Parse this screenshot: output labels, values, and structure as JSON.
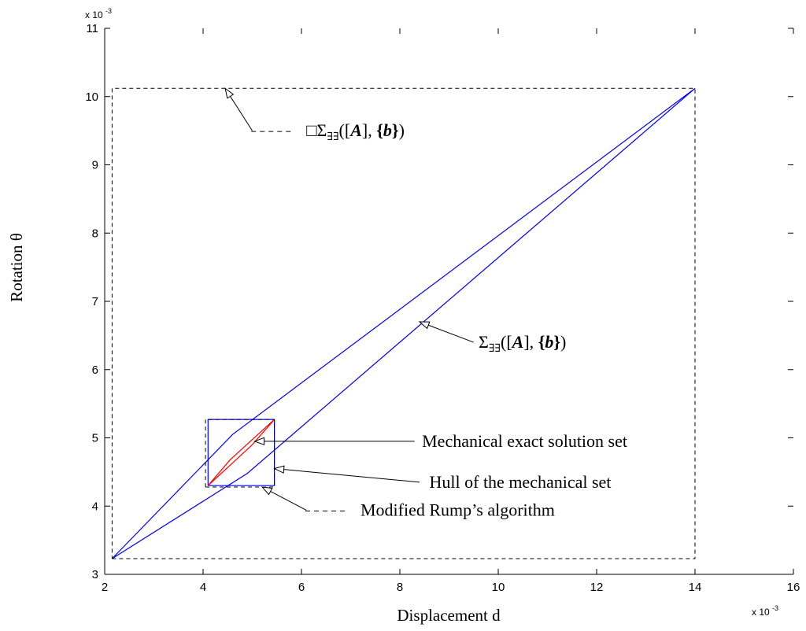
{
  "chart_data": {
    "type": "line",
    "title": "",
    "xlabel": "Displacement d",
    "ylabel": "Rotation θ",
    "xlim": [
      2,
      16
    ],
    "ylim": [
      3,
      11
    ],
    "x_scale_label": "x 10",
    "x_scale_exp": "-3",
    "y_scale_label": "x 10",
    "y_scale_exp": "-3",
    "xticks": [
      "2",
      "4",
      "6",
      "8",
      "10",
      "12",
      "14",
      "16"
    ],
    "yticks": [
      "3",
      "4",
      "5",
      "6",
      "7",
      "8",
      "9",
      "10",
      "11"
    ],
    "grid": false,
    "series": [
      {
        "color": "#0000ff",
        "style": "solid",
        "x": [
          2.15,
          4.6,
          14.0,
          4.9,
          2.15
        ],
        "y": [
          3.23,
          5.05,
          10.12,
          4.48,
          3.23
        ]
      },
      {
        "color": "#0000ff",
        "style": "solid",
        "x": [
          4.1,
          5.45,
          5.45,
          4.1,
          4.1
        ],
        "y": [
          4.3,
          4.3,
          5.27,
          5.27,
          4.3
        ]
      },
      {
        "color": "#ff0000",
        "style": "solid",
        "x": [
          4.1,
          4.55,
          5.45,
          5.0,
          4.1
        ],
        "y": [
          4.3,
          4.68,
          5.27,
          4.9,
          4.3
        ]
      },
      {
        "color": "#000000",
        "style": "dashed",
        "x": [
          4.05,
          5.45,
          5.45,
          4.05,
          4.05
        ],
        "y": [
          4.28,
          4.28,
          5.27,
          5.27,
          4.28
        ]
      },
      {
        "color": "#000000",
        "style": "dashed",
        "x": [
          2.15,
          14.0,
          14.0,
          2.15,
          2.15
        ],
        "y": [
          3.23,
          3.23,
          10.12,
          10.12,
          3.23
        ]
      }
    ],
    "annotations": [
      {
        "text_parts": [
          {
            "t": "□Σ",
            "style": "normal"
          },
          {
            "t": "∃∃",
            "style": "sub"
          },
          {
            "t": "([",
            "style": "normal"
          },
          {
            "t": "A",
            "style": "bolditalic"
          },
          {
            "t": "], ",
            "style": "normal"
          },
          {
            "t": "{",
            "style": "bold"
          },
          {
            "t": "b",
            "style": "bolditalic"
          },
          {
            "t": "}",
            "style": "bold"
          },
          {
            "t": ")",
            "style": "normal"
          }
        ],
        "legend_dash": true,
        "arrow_to": [
          4.45,
          10.12
        ],
        "arrow_from": [
          5.0,
          9.5
        ],
        "text_at": [
          6.1,
          9.5
        ]
      },
      {
        "text_parts": [
          {
            "t": "Σ",
            "style": "normal"
          },
          {
            "t": "∃∃",
            "style": "sub"
          },
          {
            "t": "([",
            "style": "normal"
          },
          {
            "t": "A",
            "style": "bolditalic"
          },
          {
            "t": "], ",
            "style": "normal"
          },
          {
            "t": "{",
            "style": "bold"
          },
          {
            "t": "b",
            "style": "bolditalic"
          },
          {
            "t": "}",
            "style": "bold"
          },
          {
            "t": ")",
            "style": "normal"
          }
        ],
        "arrow_to": [
          8.4,
          6.7
        ],
        "arrow_from": [
          9.5,
          6.4
        ],
        "text_at": [
          9.6,
          6.4
        ]
      },
      {
        "text": "Mechanical exact solution set",
        "arrow_to": [
          5.05,
          4.95
        ],
        "arrow_from": [
          8.3,
          4.95
        ],
        "text_at": [
          8.45,
          4.95
        ]
      },
      {
        "text": "Hull of the mechanical set",
        "arrow_to": [
          5.45,
          4.55
        ],
        "arrow_from": [
          8.4,
          4.35
        ],
        "text_at": [
          8.6,
          4.35
        ]
      },
      {
        "text": "Modified Rump’s algorithm",
        "legend_dash": true,
        "arrow_to": [
          5.2,
          4.28
        ],
        "arrow_from": [
          6.1,
          3.94
        ],
        "text_at": [
          7.2,
          3.94
        ]
      }
    ]
  }
}
